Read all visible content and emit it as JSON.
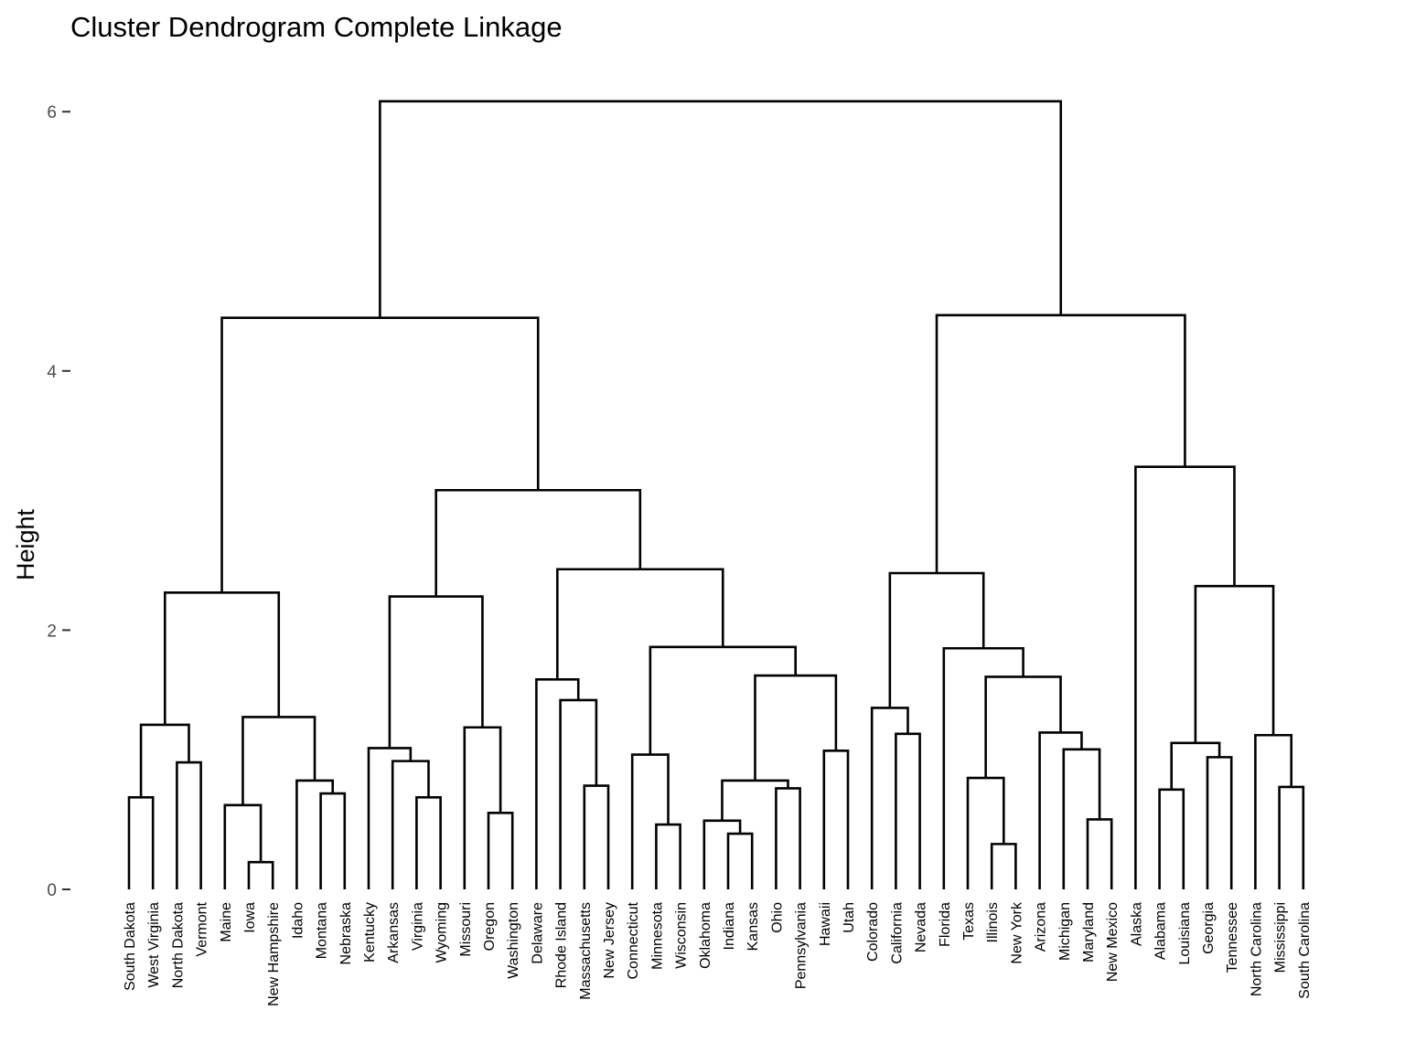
{
  "chart_data": {
    "type": "dendrogram",
    "title": "Cluster Dendrogram Complete Linkage",
    "ylabel": "Height",
    "xlabel": "",
    "ylim": [
      0,
      6.2
    ],
    "yticks": [
      0,
      2,
      4,
      6
    ],
    "grid": false,
    "leaves": [
      "South Dakota",
      "West Virginia",
      "North Dakota",
      "Vermont",
      "Maine",
      "Iowa",
      "New Hampshire",
      "Idaho",
      "Montana",
      "Nebraska",
      "Kentucky",
      "Arkansas",
      "Virginia",
      "Wyoming",
      "Missouri",
      "Oregon",
      "Washington",
      "Delaware",
      "Rhode Island",
      "Massachusetts",
      "New Jersey",
      "Connecticut",
      "Minnesota",
      "Wisconsin",
      "Oklahoma",
      "Indiana",
      "Kansas",
      "Ohio",
      "Pennsylvania",
      "Hawaii",
      "Utah",
      "Colorado",
      "California",
      "Nevada",
      "Florida",
      "Texas",
      "Illinois",
      "New York",
      "Arizona",
      "Michigan",
      "Maryland",
      "New Mexico",
      "Alaska",
      "Alabama",
      "Louisiana",
      "Georgia",
      "Tennessee",
      "North Carolina",
      "Mississippi",
      "South Carolina"
    ],
    "merges": [
      {
        "id": "c1",
        "a": "South Dakota",
        "b": "West Virginia",
        "height": 0.71
      },
      {
        "id": "c2",
        "a": "North Dakota",
        "b": "Vermont",
        "height": 0.98
      },
      {
        "id": "c3",
        "a": "c1",
        "b": "c2",
        "height": 1.27
      },
      {
        "id": "c4",
        "a": "Iowa",
        "b": "New Hampshire",
        "height": 0.21
      },
      {
        "id": "c5",
        "a": "Maine",
        "b": "c4",
        "height": 0.65
      },
      {
        "id": "c6",
        "a": "Montana",
        "b": "Nebraska",
        "height": 0.74
      },
      {
        "id": "c7",
        "a": "Idaho",
        "b": "c6",
        "height": 0.84
      },
      {
        "id": "c8",
        "a": "c5",
        "b": "c7",
        "height": 1.33
      },
      {
        "id": "c9",
        "a": "c3",
        "b": "c8",
        "height": 2.29
      },
      {
        "id": "c10",
        "a": "Wyoming",
        "b": "Virginia",
        "height": 0.71
      },
      {
        "id": "c11",
        "a": "Arkansas",
        "b": "c10",
        "height": 0.99
      },
      {
        "id": "c12",
        "a": "Kentucky",
        "b": "c11",
        "height": 1.09
      },
      {
        "id": "c13",
        "a": "Oregon",
        "b": "Washington",
        "height": 0.59
      },
      {
        "id": "c14",
        "a": "Missouri",
        "b": "c13",
        "height": 1.25
      },
      {
        "id": "c15",
        "a": "c12",
        "b": "c14",
        "height": 2.26
      },
      {
        "id": "c16",
        "a": "Massachusetts",
        "b": "New Jersey",
        "height": 0.8
      },
      {
        "id": "c17",
        "a": "Rhode Island",
        "b": "c16",
        "height": 1.46
      },
      {
        "id": "c18",
        "a": "Delaware",
        "b": "c17",
        "height": 1.62
      },
      {
        "id": "c19",
        "a": "Minnesota",
        "b": "Wisconsin",
        "height": 0.5
      },
      {
        "id": "c20",
        "a": "Connecticut",
        "b": "c19",
        "height": 1.04
      },
      {
        "id": "c21",
        "a": "Indiana",
        "b": "Kansas",
        "height": 0.43
      },
      {
        "id": "c22",
        "a": "Oklahoma",
        "b": "c21",
        "height": 0.53
      },
      {
        "id": "c23",
        "a": "Ohio",
        "b": "Pennsylvania",
        "height": 0.78
      },
      {
        "id": "c24",
        "a": "c22",
        "b": "c23",
        "height": 0.84
      },
      {
        "id": "c25",
        "a": "Hawaii",
        "b": "Utah",
        "height": 1.07
      },
      {
        "id": "c26",
        "a": "c24",
        "b": "c25",
        "height": 1.65
      },
      {
        "id": "c27",
        "a": "c20",
        "b": "c26",
        "height": 1.87
      },
      {
        "id": "c28",
        "a": "c18",
        "b": "c27",
        "height": 2.47
      },
      {
        "id": "c29",
        "a": "c15",
        "b": "c28",
        "height": 3.08
      },
      {
        "id": "c30",
        "a": "c9",
        "b": "c29",
        "height": 4.41
      },
      {
        "id": "c31",
        "a": "California",
        "b": "Nevada",
        "height": 1.2
      },
      {
        "id": "c32",
        "a": "Colorado",
        "b": "c31",
        "height": 1.4
      },
      {
        "id": "c33",
        "a": "Illinois",
        "b": "New York",
        "height": 0.35
      },
      {
        "id": "c34",
        "a": "Texas",
        "b": "c33",
        "height": 0.86
      },
      {
        "id": "c35",
        "a": "Maryland",
        "b": "New Mexico",
        "height": 0.54
      },
      {
        "id": "c36",
        "a": "Michigan",
        "b": "c35",
        "height": 1.08
      },
      {
        "id": "c37",
        "a": "Arizona",
        "b": "c36",
        "height": 1.21
      },
      {
        "id": "c38",
        "a": "c34",
        "b": "c37",
        "height": 1.64
      },
      {
        "id": "c39",
        "a": "Florida",
        "b": "c38",
        "height": 1.86
      },
      {
        "id": "c40",
        "a": "c32",
        "b": "c39",
        "height": 2.44
      },
      {
        "id": "c41",
        "a": "Alabama",
        "b": "Louisiana",
        "height": 0.77
      },
      {
        "id": "c42",
        "a": "Georgia",
        "b": "Tennessee",
        "height": 1.02
      },
      {
        "id": "c43",
        "a": "c41",
        "b": "c42",
        "height": 1.13
      },
      {
        "id": "c44",
        "a": "Mississippi",
        "b": "South Carolina",
        "height": 0.79
      },
      {
        "id": "c45",
        "a": "North Carolina",
        "b": "c44",
        "height": 1.19
      },
      {
        "id": "c46",
        "a": "c43",
        "b": "c45",
        "height": 2.34
      },
      {
        "id": "c47",
        "a": "Alaska",
        "b": "c46",
        "height": 3.26
      },
      {
        "id": "c48",
        "a": "c40",
        "b": "c47",
        "height": 4.43
      },
      {
        "id": "c49",
        "a": "c30",
        "b": "c48",
        "height": 6.08
      }
    ]
  }
}
